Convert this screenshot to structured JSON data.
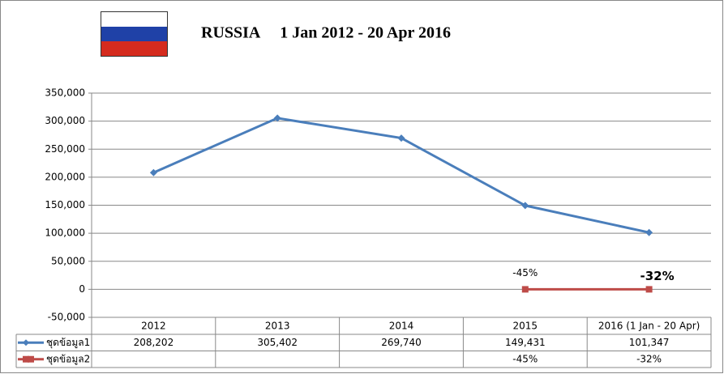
{
  "chart_data": {
    "type": "line",
    "title": "RUSSIA     1 Jan 2012 - 20 Apr 2016",
    "categories": [
      "2012",
      "2013",
      "2014",
      "2015",
      "2016 (1 Jan - 20 Apr)"
    ],
    "series": [
      {
        "name": "ชุดข้อมูล1",
        "color": "#4a7ebb",
        "marker": "diamond",
        "values": [
          208202,
          305402,
          269740,
          149431,
          101347
        ],
        "value_labels": [
          "208,202",
          "305,402",
          "269,740",
          "149,431",
          "101,347"
        ]
      },
      {
        "name": "ชุดข้อมูล2",
        "color": "#be4b48",
        "marker": "square",
        "values": [
          null,
          null,
          null,
          -45,
          -32
        ],
        "value_labels": [
          null,
          null,
          null,
          "-45%",
          "-32%"
        ]
      }
    ],
    "ylim": [
      -50000,
      350000
    ],
    "yticks": [
      {
        "value": -50000,
        "label": "-50,000"
      },
      0,
      {
        "value": 50000,
        "label": "50,000"
      },
      {
        "value": 100000,
        "label": "100,000"
      },
      {
        "value": 150000,
        "label": "150,000"
      },
      {
        "value": 200000,
        "label": "200,000"
      },
      {
        "value": 250000,
        "label": "250,000"
      },
      {
        "value": 300000,
        "label": "300,000"
      },
      {
        "value": 350000,
        "label": "350,000"
      }
    ],
    "grid": true,
    "data_table": true
  }
}
